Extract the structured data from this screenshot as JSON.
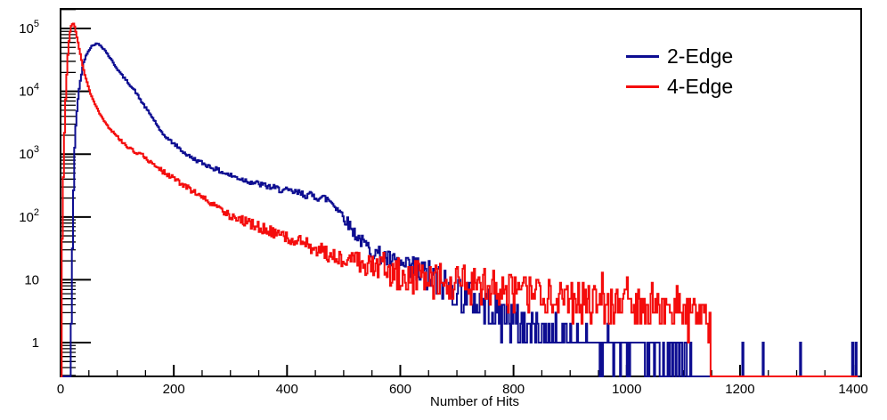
{
  "colors": {
    "background": "#ffffff",
    "axis": "#000000",
    "text": "#000000"
  },
  "chart_data": {
    "type": "line",
    "title": "",
    "xlabel": "Number of Hits",
    "ylabel": "",
    "x_scale": "linear",
    "y_scale": "log",
    "x_range": [
      0,
      1414
    ],
    "y_range": [
      0.29,
      205000
    ],
    "grid": false,
    "x_ticks": {
      "minor_step": 50,
      "major": [
        {
          "label": "0",
          "value": 0
        },
        {
          "label": "200",
          "value": 200
        },
        {
          "label": "400",
          "value": 400
        },
        {
          "label": "600",
          "value": 600
        },
        {
          "label": "800",
          "value": 800
        },
        {
          "label": "1000",
          "value": 1000
        },
        {
          "label": "1200",
          "value": 1200
        },
        {
          "label": "1400",
          "value": 1400
        }
      ]
    },
    "y_ticks": [
      {
        "base": "1",
        "exp": "",
        "value": 1
      },
      {
        "base": "10",
        "exp": "",
        "value": 10
      },
      {
        "base": "10",
        "exp": "2",
        "value": 100
      },
      {
        "base": "10",
        "exp": "3",
        "value": 1000
      },
      {
        "base": "10",
        "exp": "4",
        "value": 10000
      },
      {
        "base": "10",
        "exp": "5",
        "value": 100000
      }
    ],
    "legend": {
      "position": "top-right"
    },
    "bin_width": 2,
    "series": [
      {
        "name": "2-Edge",
        "color": "#0d0d91",
        "line_width": 2,
        "seed": 42,
        "baseline_to": 1410,
        "peak": {
          "x": 65,
          "value": 57000
        },
        "envelope": [
          [
            17,
            0.29
          ],
          [
            18,
            0.9
          ],
          [
            19,
            2.5
          ],
          [
            20,
            9
          ],
          [
            21,
            32
          ],
          [
            22,
            95
          ],
          [
            23,
            260
          ],
          [
            24,
            620
          ],
          [
            25,
            1250
          ],
          [
            26,
            2100
          ],
          [
            28,
            3900
          ],
          [
            30,
            6200
          ],
          [
            32,
            9200
          ],
          [
            34,
            12800
          ],
          [
            36,
            16800
          ],
          [
            38,
            21500
          ],
          [
            40,
            26500
          ],
          [
            43,
            33000
          ],
          [
            46,
            39000
          ],
          [
            50,
            45500
          ],
          [
            54,
            51000
          ],
          [
            58,
            55000
          ],
          [
            62,
            56800
          ],
          [
            65,
            57000
          ],
          [
            68,
            55800
          ],
          [
            72,
            52500
          ],
          [
            76,
            48000
          ],
          [
            80,
            43000
          ],
          [
            84,
            38000
          ],
          [
            88,
            33500
          ],
          [
            92,
            29500
          ],
          [
            96,
            26000
          ],
          [
            100,
            23000
          ],
          [
            105,
            19800
          ],
          [
            110,
            17300
          ],
          [
            115,
            15300
          ],
          [
            120,
            13600
          ],
          [
            126,
            11600
          ],
          [
            132,
            10000
          ],
          [
            140,
            7600
          ],
          [
            150,
            5500
          ],
          [
            160,
            4100
          ],
          [
            170,
            3000
          ],
          [
            176,
            2280
          ],
          [
            185,
            1930
          ],
          [
            195,
            1600
          ],
          [
            205,
            1350
          ],
          [
            215,
            1120
          ],
          [
            225,
            950
          ],
          [
            240,
            800
          ],
          [
            255,
            690
          ],
          [
            270,
            600
          ],
          [
            285,
            520
          ],
          [
            300,
            460
          ],
          [
            320,
            400
          ],
          [
            345,
            345
          ],
          [
            370,
            300
          ],
          [
            395,
            265
          ],
          [
            415,
            245
          ],
          [
            435,
            225
          ],
          [
            450,
            212
          ],
          [
            462,
            202
          ],
          [
            472,
            192
          ],
          [
            478,
            175
          ],
          [
            486,
            150
          ],
          [
            494,
            122
          ],
          [
            502,
            96
          ],
          [
            510,
            74
          ],
          [
            518,
            58
          ],
          [
            526,
            47
          ],
          [
            534,
            39
          ],
          [
            542,
            33.5
          ],
          [
            550,
            29.5
          ],
          [
            560,
            26
          ],
          [
            572,
            22.5
          ],
          [
            585,
            19.5
          ],
          [
            600,
            17
          ],
          [
            615,
            14.8
          ],
          [
            630,
            13
          ],
          [
            645,
            11.4
          ],
          [
            660,
            10
          ],
          [
            675,
            8.7
          ],
          [
            690,
            7.5
          ],
          [
            705,
            6.4
          ],
          [
            720,
            5.4
          ],
          [
            735,
            4.6
          ],
          [
            750,
            3.9
          ],
          [
            770,
            3.1
          ],
          [
            790,
            2.55
          ],
          [
            810,
            2.15
          ],
          [
            835,
            1.75
          ],
          [
            860,
            1.45
          ],
          [
            890,
            1.2
          ],
          [
            920,
            1.02
          ],
          [
            955,
            0.88
          ],
          [
            990,
            0.76
          ],
          [
            1030,
            0.65
          ],
          [
            1070,
            0.56
          ],
          [
            1105,
            0.48
          ],
          [
            1118,
            0.4
          ],
          [
            1122,
            0
          ]
        ],
        "noise_log10": [
          [
            0,
            0.01
          ],
          [
            100,
            0.015
          ],
          [
            200,
            0.025
          ],
          [
            300,
            0.04
          ],
          [
            400,
            0.055
          ],
          [
            470,
            0.07
          ],
          [
            520,
            0.1
          ],
          [
            580,
            0.15
          ],
          [
            640,
            0.2
          ],
          [
            1414,
            0.3
          ]
        ],
        "spikes": [
          [
            1204,
            1
          ],
          [
            1240,
            1
          ],
          [
            1306,
            1
          ],
          [
            1398,
            1
          ],
          [
            1404,
            1
          ]
        ]
      },
      {
        "name": "4-Edge",
        "color": "#f40c0c",
        "line_width": 2,
        "seed": 9001,
        "baseline_to": 1408,
        "peak": {
          "x": 22,
          "value": 120000
        },
        "envelope": [
          [
            2,
            10
          ],
          [
            3,
            45
          ],
          [
            4,
            160
          ],
          [
            5,
            430
          ],
          [
            6,
            1000
          ],
          [
            7,
            2200
          ],
          [
            8,
            4300
          ],
          [
            9,
            7600
          ],
          [
            10,
            12000
          ],
          [
            11,
            18500
          ],
          [
            12,
            27000
          ],
          [
            13,
            38000
          ],
          [
            14,
            51000
          ],
          [
            15,
            64000
          ],
          [
            16,
            77000
          ],
          [
            17,
            89000
          ],
          [
            18,
            99000
          ],
          [
            19,
            108000
          ],
          [
            20,
            114500
          ],
          [
            21,
            118500
          ],
          [
            22,
            120000
          ],
          [
            23,
            118500
          ],
          [
            24,
            114000
          ],
          [
            25,
            107000
          ],
          [
            26,
            99000
          ],
          [
            27,
            90500
          ],
          [
            28,
            82000
          ],
          [
            30,
            66000
          ],
          [
            32,
            53000
          ],
          [
            34,
            43000
          ],
          [
            36,
            35000
          ],
          [
            38,
            28800
          ],
          [
            40,
            24000
          ],
          [
            43,
            18600
          ],
          [
            46,
            14800
          ],
          [
            50,
            11000
          ],
          [
            54,
            8700
          ],
          [
            58,
            7100
          ],
          [
            62,
            5900
          ],
          [
            66,
            5000
          ],
          [
            70,
            4300
          ],
          [
            75,
            3600
          ],
          [
            80,
            3100
          ],
          [
            86,
            2640
          ],
          [
            92,
            2280
          ],
          [
            100,
            1900
          ],
          [
            110,
            1550
          ],
          [
            120,
            1280
          ],
          [
            130,
            1100
          ],
          [
            143,
            1000
          ],
          [
            152,
            850
          ],
          [
            162,
            720
          ],
          [
            172,
            610
          ],
          [
            182,
            520
          ],
          [
            192,
            450
          ],
          [
            200,
            410
          ],
          [
            220,
            310
          ],
          [
            240,
            235
          ],
          [
            260,
            180
          ],
          [
            280,
            137
          ],
          [
            300,
            105
          ],
          [
            330,
            82
          ],
          [
            360,
            64
          ],
          [
            390,
            50
          ],
          [
            420,
            40
          ],
          [
            450,
            32
          ],
          [
            480,
            25
          ],
          [
            510,
            21
          ],
          [
            540,
            17.5
          ],
          [
            570,
            15
          ],
          [
            600,
            13
          ],
          [
            630,
            11.3
          ],
          [
            660,
            10
          ],
          [
            700,
            8.8
          ],
          [
            740,
            7.8
          ],
          [
            780,
            6.9
          ],
          [
            820,
            6.1
          ],
          [
            860,
            5.4
          ],
          [
            900,
            4.8
          ],
          [
            940,
            4.3
          ],
          [
            980,
            3.85
          ],
          [
            1020,
            3.45
          ],
          [
            1060,
            3.1
          ],
          [
            1100,
            2.8
          ],
          [
            1130,
            2.6
          ],
          [
            1148,
            2.4
          ],
          [
            1152,
            0
          ]
        ],
        "noise_log10": [
          [
            0,
            0.008
          ],
          [
            50,
            0.012
          ],
          [
            100,
            0.02
          ],
          [
            150,
            0.03
          ],
          [
            250,
            0.05
          ],
          [
            350,
            0.08
          ],
          [
            450,
            0.12
          ],
          [
            550,
            0.18
          ],
          [
            650,
            0.25
          ],
          [
            1414,
            0.35
          ]
        ],
        "spikes": [
          [
            700,
            16
          ],
          [
            764,
            12
          ],
          [
            828,
            11
          ],
          [
            902,
            9
          ],
          [
            956,
            13
          ],
          [
            1000,
            11
          ],
          [
            1044,
            9
          ],
          [
            1088,
            8
          ]
        ]
      }
    ]
  }
}
